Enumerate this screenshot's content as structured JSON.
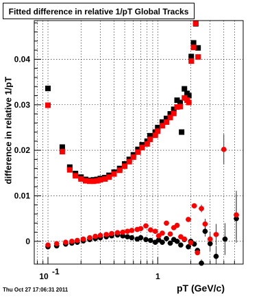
{
  "title": "Fitted difference in relative 1/pT  Global Tracks",
  "timestamp": "Thu Oct 27 17:06:31 2011",
  "chart_data": {
    "type": "scatter",
    "title": "Fitted difference in relative 1/pT  Global Tracks",
    "xlabel": "pT (GeV/c)",
    "ylabel": "difference in relative 1/pT",
    "x_scale": "log",
    "xlim": [
      0.075,
      6.0
    ],
    "ylim": [
      -0.005,
      0.0485
    ],
    "grid": true,
    "x_tick_labels": [
      {
        "v": 0.1,
        "main": "10",
        "sup": "-1"
      },
      {
        "v": 1,
        "main": "1",
        "sup": ""
      }
    ],
    "y_ticks": [
      0,
      0.01,
      0.02,
      0.03,
      0.04
    ],
    "y_tick_labels": [
      "0",
      "0.01",
      "0.02",
      "0.03",
      "0.04"
    ],
    "series": [
      {
        "marker": "square",
        "color": "#000000",
        "points": [
          [
            0.1,
            0.0336
          ],
          [
            0.135,
            0.0207
          ],
          [
            0.158,
            0.0163
          ],
          [
            0.178,
            0.0149
          ],
          [
            0.2,
            0.0141
          ],
          [
            0.22,
            0.0136
          ],
          [
            0.24,
            0.0134
          ],
          [
            0.26,
            0.0135
          ],
          [
            0.28,
            0.0136
          ],
          [
            0.3,
            0.0138
          ],
          [
            0.33,
            0.014
          ],
          [
            0.36,
            0.0145
          ],
          [
            0.4,
            0.0152
          ],
          [
            0.45,
            0.016
          ],
          [
            0.5,
            0.017
          ],
          [
            0.55,
            0.018
          ],
          [
            0.6,
            0.019
          ],
          [
            0.66,
            0.0202
          ],
          [
            0.72,
            0.0212
          ],
          [
            0.8,
            0.022
          ],
          [
            0.85,
            0.0232
          ],
          [
            0.95,
            0.024
          ],
          [
            1.0,
            0.025
          ],
          [
            1.1,
            0.0262
          ],
          [
            1.2,
            0.027
          ],
          [
            1.3,
            0.028
          ],
          [
            1.4,
            0.029
          ],
          [
            1.5,
            0.031
          ],
          [
            1.6,
            0.0305
          ],
          [
            1.75,
            0.0335
          ],
          [
            1.85,
            0.0325
          ],
          [
            1.92,
            0.032
          ],
          [
            2.02,
            0.0406
          ],
          [
            2.12,
            0.0436
          ],
          [
            2.22,
            0.0478
          ],
          [
            2.33,
            0.0425
          ],
          [
            1.65,
            0.024
          ]
        ]
      },
      {
        "marker": "square",
        "color": "#ff0000",
        "points": [
          [
            0.1,
            0.0299
          ],
          [
            0.135,
            0.0197
          ],
          [
            0.158,
            0.0157
          ],
          [
            0.178,
            0.0144
          ],
          [
            0.2,
            0.0137
          ],
          [
            0.22,
            0.0133
          ],
          [
            0.24,
            0.0132
          ],
          [
            0.26,
            0.0132
          ],
          [
            0.28,
            0.0133
          ],
          [
            0.3,
            0.0135
          ],
          [
            0.33,
            0.0137
          ],
          [
            0.36,
            0.0141
          ],
          [
            0.4,
            0.0148
          ],
          [
            0.45,
            0.0156
          ],
          [
            0.5,
            0.0165
          ],
          [
            0.55,
            0.0175
          ],
          [
            0.6,
            0.0185
          ],
          [
            0.66,
            0.0196
          ],
          [
            0.72,
            0.0206
          ],
          [
            0.8,
            0.0214
          ],
          [
            0.85,
            0.0224
          ],
          [
            0.95,
            0.0233
          ],
          [
            1.0,
            0.0242
          ],
          [
            1.1,
            0.0254
          ],
          [
            1.2,
            0.0262
          ],
          [
            1.3,
            0.0272
          ],
          [
            1.4,
            0.0281
          ],
          [
            1.5,
            0.0295
          ],
          [
            1.6,
            0.0296
          ],
          [
            1.75,
            0.0315
          ],
          [
            1.85,
            0.031
          ],
          [
            1.92,
            0.0305
          ],
          [
            2.02,
            0.0396
          ],
          [
            2.12,
            0.0426
          ],
          [
            2.22,
            0.0479
          ],
          [
            2.33,
            0.0405
          ]
        ]
      },
      {
        "marker": "circle",
        "color": "#000000",
        "points": [
          [
            0.1,
            -0.0012
          ],
          [
            0.12,
            -0.001
          ],
          [
            0.145,
            -0.0006
          ],
          [
            0.165,
            -0.0004
          ],
          [
            0.185,
            -0.0002
          ],
          [
            0.21,
            0.0001
          ],
          [
            0.24,
            0.0004
          ],
          [
            0.27,
            0.0006
          ],
          [
            0.3,
            0.0008
          ],
          [
            0.34,
            0.001
          ],
          [
            0.38,
            0.0012
          ],
          [
            0.43,
            0.0014
          ],
          [
            0.48,
            0.0012
          ],
          [
            0.53,
            0.001
          ],
          [
            0.58,
            0.0008
          ],
          [
            0.65,
            0.0005
          ],
          [
            0.7,
            0.0008
          ],
          [
            0.78,
            0.0004
          ],
          [
            0.86,
            0.0002
          ],
          [
            0.95,
            -0.0002
          ],
          [
            1.02,
            0.0003
          ],
          [
            1.1,
            -0.0002
          ],
          [
            1.2,
            0.0006
          ],
          [
            1.3,
            -0.0004
          ],
          [
            1.4,
            0.0004
          ],
          [
            1.5,
            0.0
          ],
          [
            1.62,
            -0.0008
          ],
          [
            1.75,
            0.0004
          ],
          [
            1.9,
            -0.0012
          ],
          [
            2.0,
            0.0
          ],
          [
            2.15,
            -0.0006
          ],
          [
            2.3,
            -0.002
          ],
          [
            2.5,
            -0.0048
          ],
          [
            2.7,
            0.0022
          ],
          [
            3.0,
            -0.0005
          ],
          [
            3.4,
            -0.0033
          ],
          [
            4.1,
            0.0005
          ],
          [
            5.2,
            0.005
          ]
        ]
      },
      {
        "marker": "circle",
        "color": "#ff0000",
        "points": [
          [
            0.1,
            -0.0008
          ],
          [
            0.12,
            -0.0005
          ],
          [
            0.145,
            -0.0002
          ],
          [
            0.165,
            0.0
          ],
          [
            0.185,
            0.0002
          ],
          [
            0.21,
            0.0005
          ],
          [
            0.24,
            0.0008
          ],
          [
            0.27,
            0.0011
          ],
          [
            0.3,
            0.0013
          ],
          [
            0.34,
            0.0015
          ],
          [
            0.38,
            0.0017
          ],
          [
            0.43,
            0.0019
          ],
          [
            0.48,
            0.002
          ],
          [
            0.53,
            0.0022
          ],
          [
            0.58,
            0.0024
          ],
          [
            0.65,
            0.0026
          ],
          [
            0.7,
            0.0028
          ],
          [
            0.78,
            0.0034
          ],
          [
            0.86,
            0.0025
          ],
          [
            0.95,
            0.0022
          ],
          [
            1.02,
            0.0012
          ],
          [
            1.1,
            0.0018
          ],
          [
            1.2,
            0.004
          ],
          [
            1.3,
            0.0016
          ],
          [
            1.4,
            0.003
          ],
          [
            1.5,
            0.0035
          ],
          [
            1.62,
            0.001
          ],
          [
            1.75,
            0.0005
          ],
          [
            1.9,
            0.0048
          ],
          [
            2.0,
            -0.0003
          ],
          [
            2.15,
            0.0078
          ],
          [
            2.3,
            -0.0025
          ],
          [
            2.5,
            0.0072
          ],
          [
            2.7,
            0.0038
          ],
          [
            3.0,
            0.0005
          ],
          [
            3.4,
            0.0015
          ],
          [
            4.0,
            0.0202
          ],
          [
            5.2,
            0.0058
          ]
        ]
      }
    ]
  }
}
